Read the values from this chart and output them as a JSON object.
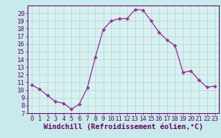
{
  "x": [
    0,
    1,
    2,
    3,
    4,
    5,
    6,
    7,
    8,
    9,
    10,
    11,
    12,
    13,
    14,
    15,
    16,
    17,
    18,
    19,
    20,
    21,
    22,
    23
  ],
  "y": [
    10.7,
    10.1,
    9.3,
    8.5,
    8.3,
    7.5,
    8.2,
    10.3,
    14.3,
    17.9,
    19.0,
    19.3,
    19.3,
    20.5,
    20.4,
    19.0,
    17.5,
    16.5,
    15.8,
    12.3,
    12.5,
    11.3,
    10.4,
    10.5
  ],
  "line_color": "#993399",
  "marker_color": "#993399",
  "bg_color": "#c8eaea",
  "grid_color": "#aad4d4",
  "axis_bg": "#d8f0f0",
  "xlabel": "Windchill (Refroidissement éolien,°C)",
  "xlim": [
    -0.5,
    23.5
  ],
  "ylim": [
    7,
    21
  ],
  "yticks": [
    7,
    8,
    9,
    10,
    11,
    12,
    13,
    14,
    15,
    16,
    17,
    18,
    19,
    20
  ],
  "xticks": [
    0,
    1,
    2,
    3,
    4,
    5,
    6,
    7,
    8,
    9,
    10,
    11,
    12,
    13,
    14,
    15,
    16,
    17,
    18,
    19,
    20,
    21,
    22,
    23
  ],
  "tick_fontsize": 6.5,
  "xlabel_fontsize": 7.5,
  "marker_size": 2.5,
  "linewidth": 1.0
}
